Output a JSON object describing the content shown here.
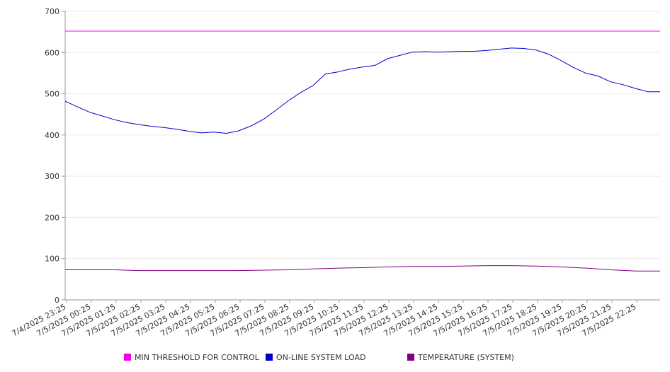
{
  "chart_data": {
    "type": "line",
    "title": "",
    "xlabel": "",
    "ylabel": "",
    "ylim": [
      0,
      700
    ],
    "y_ticks": [
      0,
      100,
      200,
      300,
      400,
      500,
      600,
      700
    ],
    "grid": true,
    "legend_placement": "bottom",
    "x_tick_labels": [
      "7/4/2025 23:25",
      "7/5/2025 00:25",
      "7/5/2025 01:25",
      "7/5/2025 02:25",
      "7/5/2025 03:25",
      "7/5/2025 04:25",
      "7/5/2025 05:25",
      "7/5/2025 06:25",
      "7/5/2025 07:25",
      "7/5/2025 08:25",
      "7/5/2025 09:25",
      "7/5/2025 10:25",
      "7/5/2025 11:25",
      "7/5/2025 12:25",
      "7/5/2025 13:25",
      "7/5/2025 14:25",
      "7/5/2025 15:25",
      "7/5/2025 16:25",
      "7/5/2025 17:25",
      "7/5/2025 18:25",
      "7/5/2025 19:25",
      "7/5/2025 20:25",
      "7/5/2025 21:25",
      "7/5/2025 22:25"
    ],
    "x_hours": [
      0,
      24
    ],
    "series": [
      {
        "name": "MIN THRESHOLD FOR CONTROL",
        "color": "#ee00ee",
        "x": [
          0,
          24
        ],
        "values": [
          652,
          652
        ]
      },
      {
        "name": "ON-LINE SYSTEM LOAD",
        "color": "#0000cc",
        "x": [
          0,
          0.5,
          1,
          1.5,
          2,
          2.5,
          3,
          3.5,
          4,
          4.5,
          5,
          5.5,
          6,
          6.5,
          7,
          7.5,
          8,
          8.5,
          9,
          9.5,
          10,
          10.5,
          11,
          11.5,
          12,
          12.5,
          13,
          13.5,
          14,
          14.5,
          15,
          15.5,
          16,
          16.5,
          17,
          17.5,
          18,
          18.5,
          19,
          19.5,
          20,
          20.5,
          21,
          21.5,
          22,
          22.5,
          23,
          23.5,
          24
        ],
        "values": [
          482,
          468,
          455,
          446,
          437,
          430,
          425,
          421,
          418,
          414,
          409,
          405,
          407,
          404,
          410,
          422,
          438,
          460,
          483,
          503,
          520,
          548,
          553,
          560,
          565,
          569,
          585,
          593,
          601,
          602,
          601,
          602,
          603,
          603,
          605,
          608,
          611,
          610,
          606,
          596,
          581,
          564,
          550,
          543,
          529,
          522,
          513,
          505,
          505
        ]
      },
      {
        "name": "TEMPERATURE (SYSTEM)",
        "color": "#800080",
        "x": [
          0,
          1,
          2,
          3,
          4,
          5,
          6,
          7,
          8,
          9,
          10,
          11,
          12,
          13,
          14,
          15,
          16,
          17,
          18,
          19,
          20,
          21,
          22,
          23,
          24
        ],
        "values": [
          73,
          73,
          73,
          71,
          71,
          71,
          71,
          71,
          72,
          73,
          75,
          77,
          78,
          80,
          81,
          81,
          82,
          83,
          83,
          82,
          80,
          77,
          73,
          70,
          70
        ]
      }
    ]
  }
}
